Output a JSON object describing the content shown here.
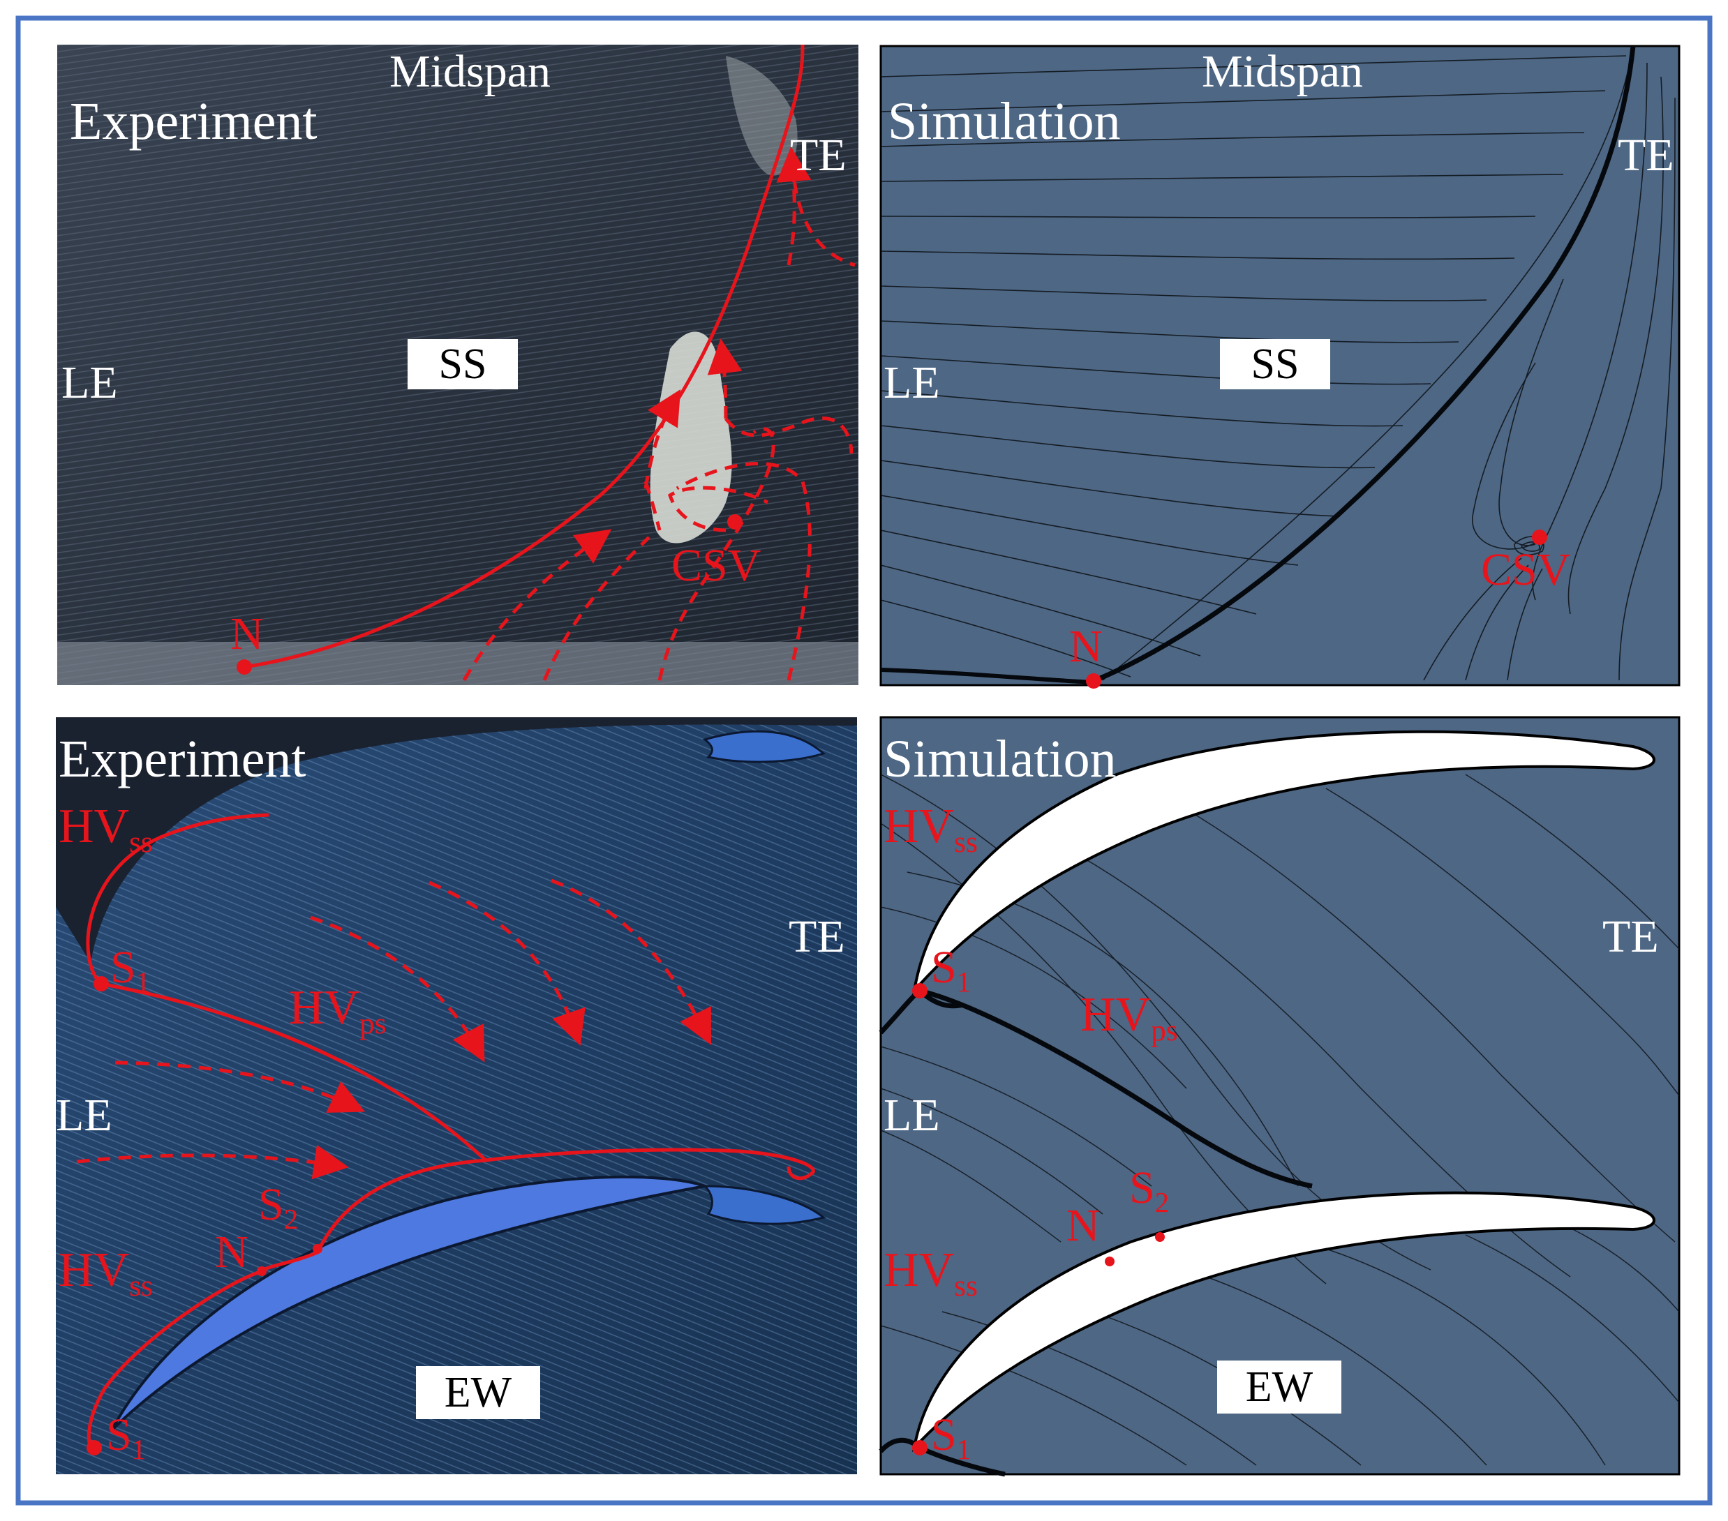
{
  "panels": {
    "top_left": {
      "title": "Experiment",
      "midspan": "Midspan",
      "le": "LE",
      "te": "TE",
      "ss": "SS",
      "n": "N",
      "csv": "CSV"
    },
    "top_right": {
      "title": "Simulation",
      "midspan": "Midspan",
      "le": "LE",
      "te": "TE",
      "ss": "SS",
      "n": "N",
      "csv": "CSV"
    },
    "bottom_left": {
      "title": "Experiment",
      "le": "LE",
      "te": "TE",
      "ew": "EW",
      "hv": "HV",
      "ss_sub": "ss",
      "ps_sub": "ps",
      "s": "S",
      "sub1": "1",
      "sub2": "2",
      "n": "N"
    },
    "bottom_right": {
      "title": "Simulation",
      "le": "LE",
      "te": "TE",
      "ew": "EW",
      "hv": "HV",
      "ss_sub": "ss",
      "ps_sub": "ps",
      "s": "S",
      "sub1": "1",
      "sub2": "2",
      "n": "N"
    }
  },
  "colors": {
    "frame": "#4a74c4",
    "annotation": "#e8141c",
    "sim_fill": "#4e6784",
    "exp_dark": "#2b3442",
    "exp_blue": "#2f5a8a"
  }
}
